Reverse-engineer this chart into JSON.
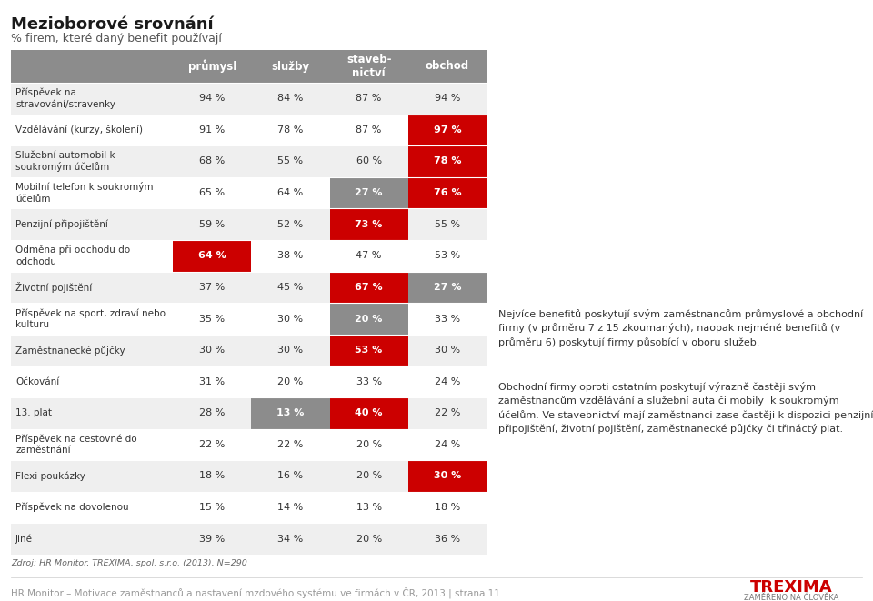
{
  "title": "Mezioborové srovnání",
  "subtitle": "% firem, které daný benefit používají",
  "columns": [
    "průmysl",
    "služby",
    "staveb-\nnictví",
    "obchod"
  ],
  "rows": [
    {
      "label": "Příspěvek na\nstravování/stravenky",
      "values": [
        94,
        84,
        87,
        94
      ],
      "highlights": [
        "none",
        "none",
        "none",
        "none"
      ]
    },
    {
      "label": "Vzdělávání (kurzy, školení)",
      "values": [
        91,
        78,
        87,
        97
      ],
      "highlights": [
        "none",
        "none",
        "none",
        "red"
      ]
    },
    {
      "label": "Služební automobil k\nsoukromým účelům",
      "values": [
        68,
        55,
        60,
        78
      ],
      "highlights": [
        "none",
        "none",
        "none",
        "red"
      ]
    },
    {
      "label": "Mobilní telefon k soukromým\núčelům",
      "values": [
        65,
        64,
        27,
        76
      ],
      "highlights": [
        "none",
        "none",
        "gray",
        "red"
      ]
    },
    {
      "label": "Penzijní připojištění",
      "values": [
        59,
        52,
        73,
        55
      ],
      "highlights": [
        "none",
        "none",
        "red",
        "none"
      ]
    },
    {
      "label": "Odměna při odchodu do\nodchodu",
      "values": [
        64,
        38,
        47,
        53
      ],
      "highlights": [
        "red",
        "none",
        "none",
        "none"
      ]
    },
    {
      "label": "Životní pojištění",
      "values": [
        37,
        45,
        67,
        27
      ],
      "highlights": [
        "none",
        "none",
        "red",
        "gray"
      ]
    },
    {
      "label": "Příspěvek na sport, zdraví nebo\nkulturu",
      "values": [
        35,
        30,
        20,
        33
      ],
      "highlights": [
        "none",
        "none",
        "gray",
        "none"
      ]
    },
    {
      "label": "Zaměstnanecké půjčky",
      "values": [
        30,
        30,
        53,
        30
      ],
      "highlights": [
        "none",
        "none",
        "red",
        "none"
      ]
    },
    {
      "label": "Očkování",
      "values": [
        31,
        20,
        33,
        24
      ],
      "highlights": [
        "none",
        "none",
        "none",
        "none"
      ]
    },
    {
      "label": "13. plat",
      "values": [
        28,
        13,
        40,
        22
      ],
      "highlights": [
        "none",
        "gray",
        "red",
        "none"
      ]
    },
    {
      "label": "Příspěvek na cestovné do\nzaměstnání",
      "values": [
        22,
        22,
        20,
        24
      ],
      "highlights": [
        "none",
        "none",
        "none",
        "none"
      ]
    },
    {
      "label": "Flexi poukázky",
      "values": [
        18,
        16,
        20,
        30
      ],
      "highlights": [
        "none",
        "none",
        "none",
        "red"
      ]
    },
    {
      "label": "Příspěvek na dovolenou",
      "values": [
        15,
        14,
        13,
        18
      ],
      "highlights": [
        "none",
        "none",
        "none",
        "none"
      ]
    },
    {
      "label": "Jiné",
      "values": [
        39,
        34,
        20,
        36
      ],
      "highlights": [
        "none",
        "none",
        "none",
        "none"
      ]
    }
  ],
  "header_bg": "#8c8c8c",
  "header_text_color": "#ffffff",
  "red_color": "#cc0000",
  "gray_color": "#8c8c8c",
  "row_bg_even": "#efefef",
  "row_bg_odd": "#ffffff",
  "text_color": "#333333",
  "source_text": "Zdroj: HR Monitor, TREXIMA, spol. s.r.o. (2013), N=290",
  "side_para1": "Nejvíce benefitů poskytují svým zaměstnancům průmyslové a obchodní\nfirmy (v průměru 7 z 15 zkoumaných), naopak nejméně benefitů (v\nprůměru 6) poskytují firmy působící v oboru služeb.",
  "side_para2": "Obchodní firmy oproti ostatním poskytují výrazně častěji svým\nzaměstnancům vzdělávání a služební auta či mobily  k soukromým\núčelům. Ve stavebnictví mají zaměstnanci zase častěji k dispozici penzijní\npřipojištění, životní pojištění, zaměstnanecké půjčky či třináctý plat.",
  "footer_text": "HR Monitor – Motivace zaměstnanců a nastavení mzdového systému ve firmách v ČR, 2013 | strana 11",
  "trexima_text": "TREXIMA",
  "trexima_subtext": "ZAMĚŘENO NA ČLOVĚKA"
}
